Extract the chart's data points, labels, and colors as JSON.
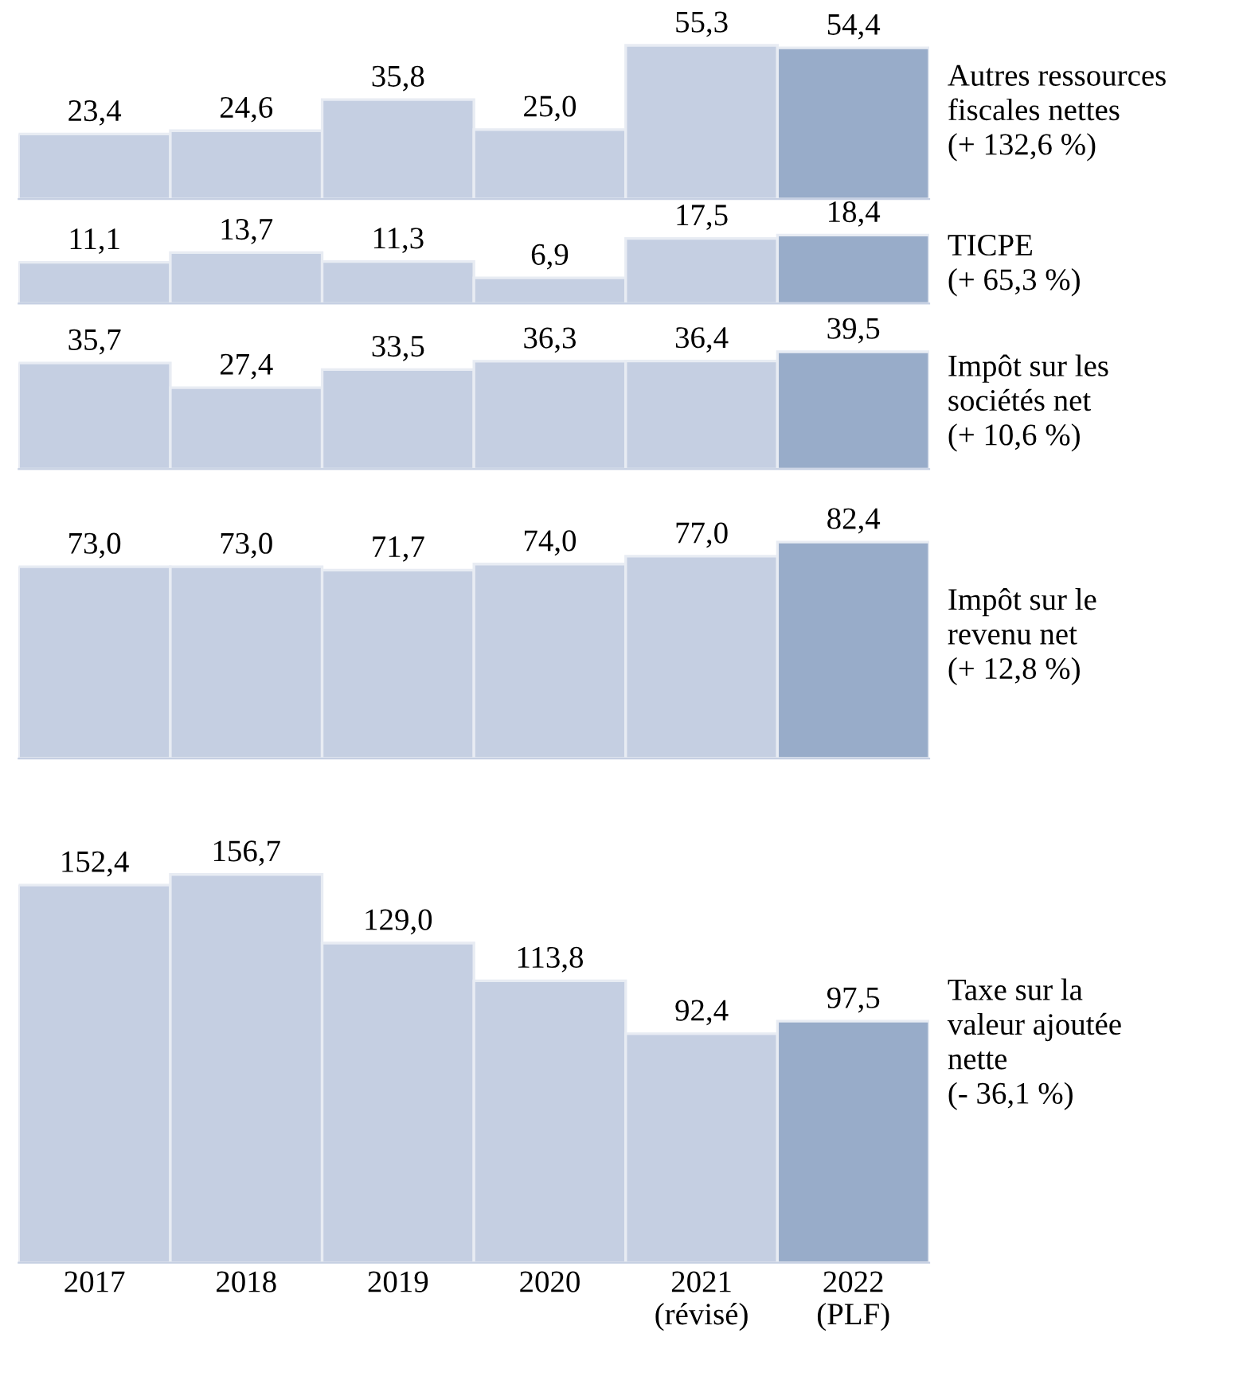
{
  "chart_data": [
    {
      "type": "bar",
      "ylabel": "Autres ressources\nfiscales nettes\n(+ 132,6 %)",
      "categories": [
        null,
        null,
        null,
        null,
        null,
        null
      ],
      "values": [
        23.4,
        24.6,
        35.8,
        25.0,
        55.3,
        54.4
      ],
      "value_labels": [
        "23,4",
        "24,6",
        "35,8",
        "25,0",
        "55,3",
        "54,4"
      ],
      "colors": [
        "#c5cfe2",
        "#c5cfe2",
        "#c5cfe2",
        "#c5cfe2",
        "#c5cfe2",
        "#98acc9"
      ],
      "tick_labels": false
    },
    {
      "type": "bar",
      "ylabel": "TICPE\n(+ 65,3 %)",
      "categories": [
        null,
        null,
        null,
        null,
        null,
        null
      ],
      "values": [
        11.1,
        13.7,
        11.3,
        6.9,
        17.5,
        18.4
      ],
      "value_labels": [
        "11,1",
        "13,7",
        "11,3",
        "6,9",
        "17,5",
        "18,4"
      ],
      "colors": [
        "#c5cfe2",
        "#c5cfe2",
        "#c5cfe2",
        "#c5cfe2",
        "#c5cfe2",
        "#98acc9"
      ],
      "tick_labels": false
    },
    {
      "type": "bar",
      "ylabel": "Impôt sur les\nsociétés net\n(+ 10,6 %)",
      "categories": [
        null,
        null,
        null,
        null,
        null,
        null
      ],
      "values": [
        35.7,
        27.4,
        33.5,
        36.3,
        36.4,
        39.5
      ],
      "value_labels": [
        "35,7",
        "27,4",
        "33,5",
        "36,3",
        "36,4",
        "39,5"
      ],
      "colors": [
        "#c5cfe2",
        "#c5cfe2",
        "#c5cfe2",
        "#c5cfe2",
        "#c5cfe2",
        "#98acc9"
      ],
      "tick_labels": false
    },
    {
      "type": "bar",
      "ylabel": "Impôt sur le\nrevenu net\n(+ 12,8 %)",
      "categories": [
        null,
        null,
        null,
        null,
        null,
        null
      ],
      "values": [
        73.0,
        73.0,
        71.7,
        74.0,
        77.0,
        82.4
      ],
      "value_labels": [
        "73,0",
        "73,0",
        "71,7",
        "74,0",
        "77,0",
        "82,4"
      ],
      "colors": [
        "#c5cfe2",
        "#c5cfe2",
        "#c5cfe2",
        "#c5cfe2",
        "#c5cfe2",
        "#98acc9"
      ],
      "tick_labels": false
    },
    {
      "type": "bar",
      "ylabel": "Taxe sur la\nvaleur ajoutée\nnette\n(- 36,1 %)",
      "categories": [
        "2017",
        "2018",
        "2019",
        "2020",
        "2021\n(révisé)",
        "2022\n(PLF)"
      ],
      "values": [
        152.4,
        156.7,
        129.0,
        113.8,
        92.4,
        97.5
      ],
      "value_labels": [
        "152,4",
        "156,7",
        "129,0",
        "113,8",
        "92,4",
        "97,5"
      ],
      "colors": [
        "#c5cfe2",
        "#c5cfe2",
        "#c5cfe2",
        "#c5cfe2",
        "#c5cfe2",
        "#98acc9"
      ],
      "tick_labels": "x"
    }
  ]
}
